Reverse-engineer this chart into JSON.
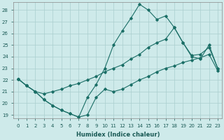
{
  "xlabel": "Humidex (Indice chaleur)",
  "background_color": "#ceeaea",
  "grid_color": "#aacece",
  "line_color": "#1a6e66",
  "xlim": [
    -0.5,
    23.5
  ],
  "ylim": [
    18.7,
    28.7
  ],
  "yticks": [
    19,
    20,
    21,
    22,
    23,
    24,
    25,
    26,
    27,
    28
  ],
  "xticks": [
    0,
    1,
    2,
    3,
    4,
    5,
    6,
    7,
    8,
    9,
    10,
    11,
    12,
    13,
    14,
    15,
    16,
    17,
    18,
    19,
    20,
    21,
    22,
    23
  ],
  "line_min_x": [
    0,
    1,
    2,
    3,
    4,
    5,
    6,
    7,
    8,
    9,
    10,
    11,
    12,
    13,
    14,
    15,
    16,
    17,
    18,
    19,
    20,
    21,
    22,
    23
  ],
  "line_min_y": [
    22.1,
    21.5,
    21.0,
    20.3,
    19.8,
    19.4,
    19.1,
    18.8,
    19.0,
    20.5,
    21.2,
    21.0,
    21.2,
    21.6,
    22.0,
    22.3,
    22.7,
    23.0,
    23.2,
    23.5,
    23.7,
    23.9,
    24.2,
    22.8
  ],
  "line_max_x": [
    0,
    1,
    2,
    3,
    4,
    5,
    6,
    7,
    8,
    9,
    10,
    11,
    12,
    13,
    14,
    15,
    16,
    17,
    18,
    19,
    20,
    21,
    22,
    23
  ],
  "line_max_y": [
    22.1,
    21.5,
    21.0,
    20.3,
    19.8,
    19.4,
    19.1,
    18.8,
    20.5,
    21.6,
    23.0,
    25.0,
    26.2,
    27.3,
    28.5,
    28.0,
    27.2,
    27.5,
    26.5,
    25.2,
    24.1,
    24.2,
    24.8,
    23.0
  ],
  "line_mid_x": [
    0,
    1,
    2,
    3,
    4,
    5,
    6,
    7,
    8,
    9,
    10,
    11,
    12,
    13,
    14,
    15,
    16,
    17,
    18,
    19,
    20,
    21,
    22,
    23
  ],
  "line_mid_y": [
    22.1,
    21.5,
    21.0,
    20.8,
    21.0,
    21.2,
    21.5,
    21.7,
    22.0,
    22.3,
    22.7,
    23.0,
    23.3,
    23.8,
    24.2,
    24.8,
    25.2,
    25.5,
    26.5,
    25.2,
    24.0,
    23.8,
    25.0,
    23.0
  ]
}
